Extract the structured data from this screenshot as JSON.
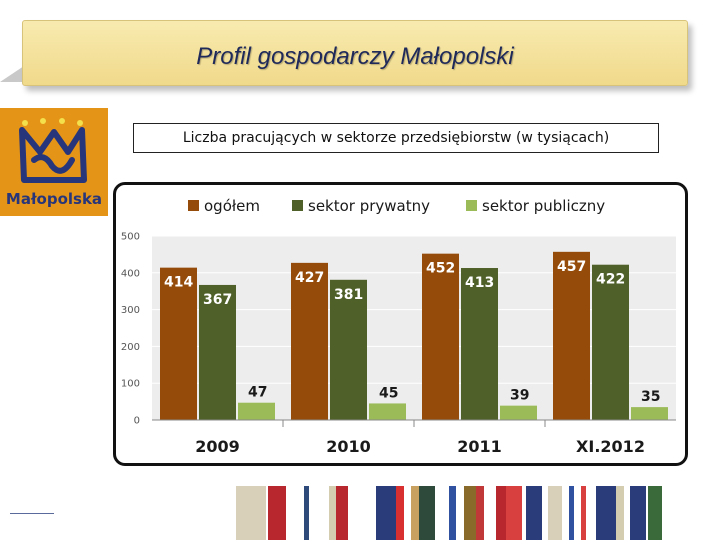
{
  "header": {
    "title": "Profil gospodarczy Małopolski"
  },
  "logo": {
    "text": "Małopolska",
    "icon": "malopolska-crown-icon"
  },
  "chart_data": {
    "type": "bar",
    "title": "Liczba pracujących w sektorze przedsiębiorstw (w tysiącach)",
    "categories": [
      "2009",
      "2010",
      "2011",
      "XI.2012"
    ],
    "series": [
      {
        "name": "ogółem",
        "color": "#954b0a",
        "values": [
          414,
          427,
          452,
          457
        ]
      },
      {
        "name": "sektor prywatny",
        "color": "#4f6128",
        "values": [
          367,
          381,
          413,
          422
        ]
      },
      {
        "name": "sektor publiczny",
        "color": "#9bbb59",
        "values": [
          47,
          45,
          39,
          35
        ]
      }
    ],
    "ylim": [
      0,
      500
    ],
    "yticks": [
      "0",
      "100",
      "200",
      "300",
      "400",
      "500"
    ],
    "grid": true,
    "legend": "top",
    "data_labels": true,
    "xlabel": "",
    "ylabel": ""
  }
}
